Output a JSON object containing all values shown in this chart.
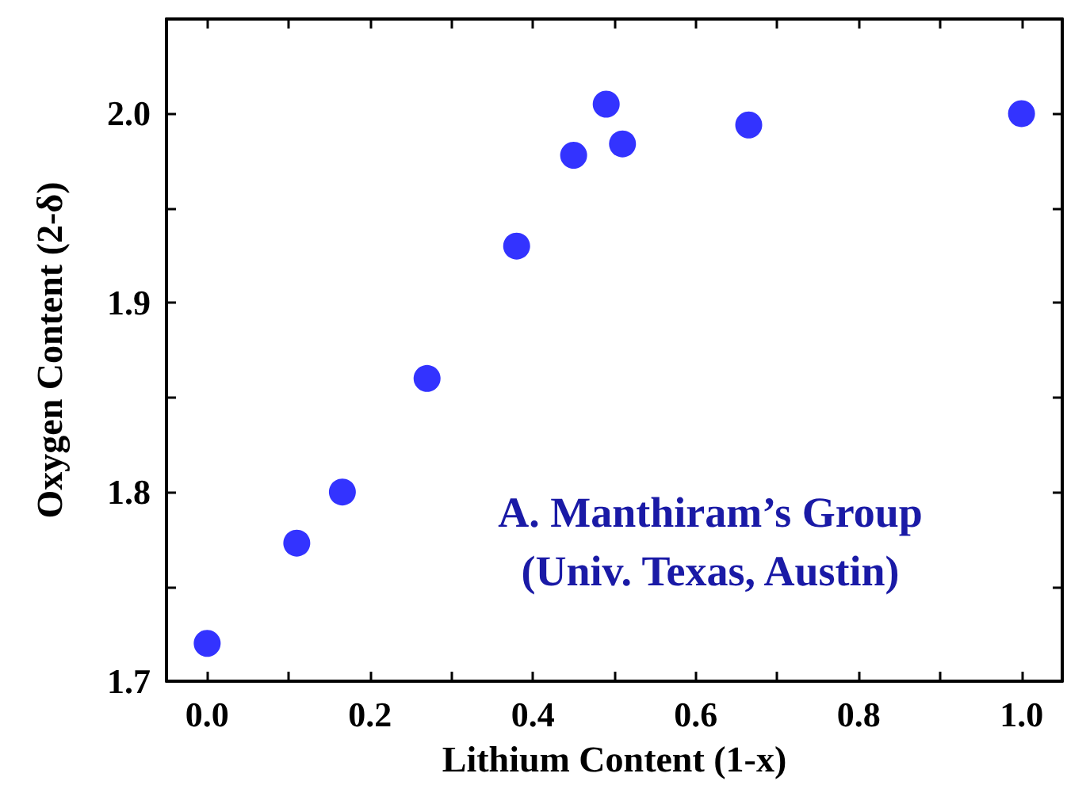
{
  "chart_data": {
    "type": "scatter",
    "xlabel": "Lithium Content (1-x)",
    "ylabel": "Oxygen Content (2-δ)",
    "annotations": [
      "A. Manthiram’s Group",
      "(Univ. Texas, Austin)"
    ],
    "x": [
      0,
      0.11,
      0.166,
      0.27,
      0.38,
      0.45,
      0.49,
      0.51,
      0.665,
      1.0
    ],
    "series": [
      {
        "color": "#0000ff",
        "values": [
          1.72,
          1.773,
          1.8,
          1.86,
          1.93,
          1.978,
          2.005,
          1.984,
          1.994,
          2.0
        ]
      }
    ],
    "marker": "circle",
    "xlim": [
      -0.05,
      1.05
    ],
    "xticks": [
      {
        "value": 0,
        "label": "0.0"
      },
      {
        "value": 0.1,
        "label": null
      },
      {
        "value": 0.2,
        "label": "0.2"
      },
      {
        "value": 0.3,
        "label": null
      },
      {
        "value": 0.4,
        "label": "0.4"
      },
      {
        "value": 0.5,
        "label": null
      },
      {
        "value": 0.6,
        "label": "0.6"
      },
      {
        "value": 0.7,
        "label": null
      },
      {
        "value": 0.8,
        "label": "0.8"
      },
      {
        "value": 0.9,
        "label": null
      },
      {
        "value": 1.0,
        "label": "1.0"
      }
    ],
    "ylim": [
      1.7,
      2.05
    ],
    "yticks": [
      {
        "value": 1.7,
        "label": "1.7"
      },
      {
        "value": 1.75,
        "label": null
      },
      {
        "value": 1.8,
        "label": "1.8"
      },
      {
        "value": 1.85,
        "label": null
      },
      {
        "value": 1.9,
        "label": "1.9"
      },
      {
        "value": 1.95,
        "label": null
      },
      {
        "value": 2.0,
        "label": "2.0"
      }
    ],
    "grid": false
  }
}
